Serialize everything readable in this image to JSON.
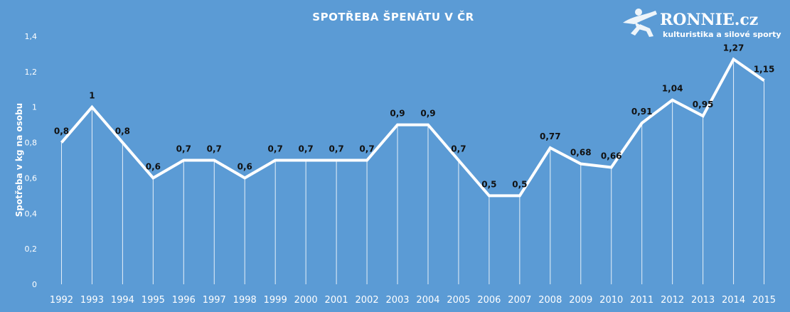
{
  "chart_data": {
    "type": "line",
    "title": "SPOTŘEBA ŠPENÁTU V ČR",
    "xlabel": "",
    "ylabel": "Spotřeba v kg na osobu",
    "ylim": [
      0,
      1.4
    ],
    "yticks": [
      "0",
      "0,2",
      "0,4",
      "0,6",
      "0,8",
      "1",
      "1,2",
      "1,4"
    ],
    "ytick_values": [
      0,
      0.2,
      0.4,
      0.6,
      0.8,
      1.0,
      1.2,
      1.4
    ],
    "grid": false,
    "categories": [
      "1992",
      "1993",
      "1994",
      "1995",
      "1996",
      "1997",
      "1998",
      "1999",
      "2000",
      "2001",
      "2002",
      "2003",
      "2004",
      "2005",
      "2006",
      "2007",
      "2008",
      "2009",
      "2010",
      "2011",
      "2012",
      "2013",
      "2014",
      "2015"
    ],
    "values": [
      0.8,
      1.0,
      0.8,
      0.6,
      0.7,
      0.7,
      0.6,
      0.7,
      0.7,
      0.7,
      0.7,
      0.9,
      0.9,
      0.7,
      0.5,
      0.5,
      0.77,
      0.68,
      0.66,
      0.91,
      1.04,
      0.95,
      1.27,
      1.15
    ],
    "data_labels": [
      "0,8",
      "1",
      "0,8",
      "0,6",
      "0,7",
      "0,7",
      "0,6",
      "0,7",
      "0,7",
      "0,7",
      "0,7",
      "0,9",
      "0,9",
      "0,7",
      "0,5",
      "0,5",
      "0,77",
      "0,68",
      "0,66",
      "0,91",
      "1,04",
      "0,95",
      "1,27",
      "1,15"
    ],
    "colors": {
      "background": "#5b9bd5",
      "line": "#ffffff",
      "drop_line": "#ffffff",
      "label_text": "#111111"
    }
  },
  "logo": {
    "name": "RONNIE.cz",
    "tagline": "kulturistika a silové sporty"
  }
}
